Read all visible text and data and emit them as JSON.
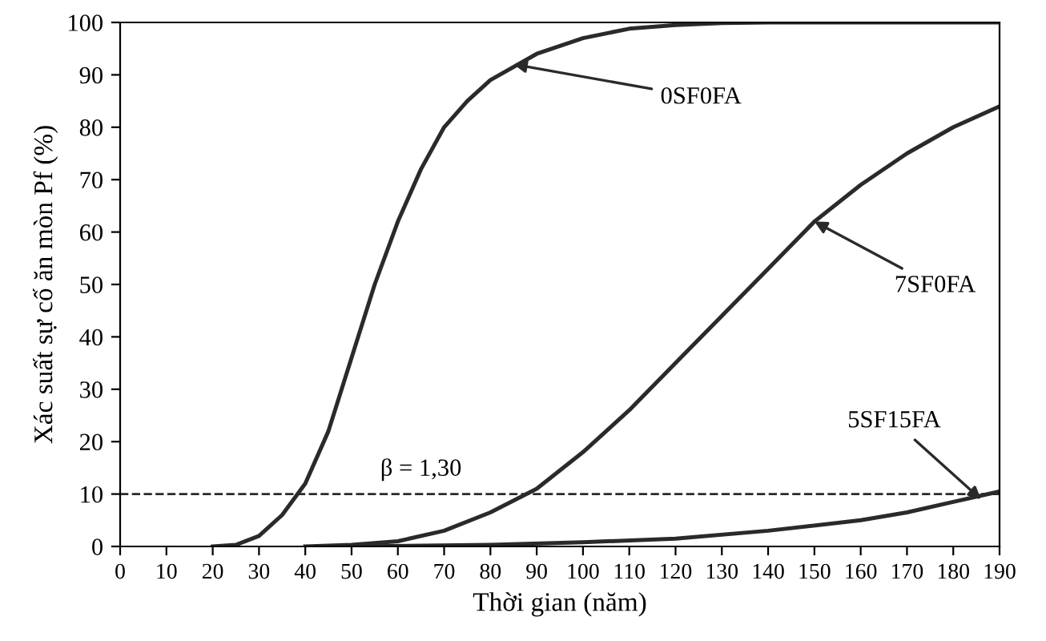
{
  "chart_data": {
    "type": "line",
    "xlabel": "Thời gian (năm)",
    "ylabel": "Xác suất sự cố ăn mòn Pf (%)",
    "xlim": [
      0,
      190
    ],
    "ylim": [
      0,
      100
    ],
    "xticks": [
      0,
      10,
      20,
      30,
      40,
      50,
      60,
      70,
      80,
      90,
      100,
      110,
      120,
      130,
      140,
      150,
      160,
      170,
      180,
      190
    ],
    "yticks": [
      0,
      10,
      20,
      30,
      40,
      50,
      60,
      70,
      80,
      90,
      100
    ],
    "grid": false,
    "legend": false,
    "marker": "none",
    "line_style": "solid",
    "series": [
      {
        "color": "#2a2a2a",
        "x": [
          20,
          25,
          30,
          35,
          40,
          45,
          50,
          55,
          60,
          65,
          70,
          75,
          80,
          90,
          100,
          110,
          120,
          130,
          140,
          190
        ],
        "values": [
          0,
          0.3,
          2,
          6,
          12,
          22,
          36,
          50,
          62,
          72,
          80,
          85,
          89,
          94,
          97,
          98.8,
          99.5,
          99.9,
          100,
          100
        ]
      },
      {
        "color": "#2a2a2a",
        "x": [
          40,
          50,
          60,
          70,
          80,
          90,
          100,
          110,
          120,
          130,
          140,
          150,
          160,
          170,
          180,
          190
        ],
        "values": [
          0,
          0.3,
          1,
          3,
          6.5,
          11,
          18,
          26,
          35,
          44,
          53,
          62,
          69,
          75,
          80,
          84
        ]
      },
      {
        "color": "#2a2a2a",
        "x": [
          50,
          80,
          100,
          120,
          140,
          160,
          170,
          180,
          190
        ],
        "values": [
          0,
          0.3,
          0.8,
          1.5,
          3,
          5,
          6.5,
          8.5,
          10.5
        ]
      }
    ],
    "ref_lines": [
      {
        "axis": "y",
        "value": 10,
        "color": "#2a2a2a",
        "line_style": "dashed"
      }
    ],
    "annotations": [
      {
        "text": "β = 1,30",
        "x": 65,
        "y": 10
      },
      {
        "text": "0SF0FA",
        "x": 85,
        "y": 92
      },
      {
        "text": "7SF0FA",
        "x": 150,
        "y": 62
      },
      {
        "text": "5SF15FA",
        "x": 186,
        "y": 9
      }
    ]
  }
}
